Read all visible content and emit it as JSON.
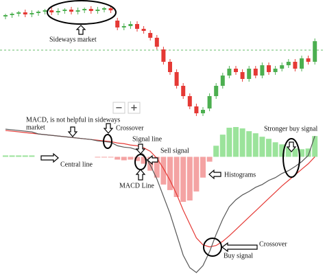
{
  "controls": [
    "−",
    "+"
  ],
  "chart_data": [
    {
      "type": "candlestick",
      "open": [
        156,
        158,
        160,
        162,
        159,
        161,
        163,
        165,
        162,
        164,
        166,
        163,
        165,
        167,
        164,
        166,
        168,
        150,
        140,
        142,
        145,
        138,
        132,
        125,
        108,
        90,
        75,
        55,
        40,
        25,
        15,
        22,
        40,
        55,
        70,
        80,
        75,
        65,
        80,
        70,
        85,
        75,
        80,
        85,
        90,
        80,
        95,
        90
      ],
      "close": [
        158,
        160,
        162,
        159,
        161,
        163,
        165,
        162,
        164,
        166,
        163,
        165,
        167,
        164,
        166,
        168,
        165,
        140,
        142,
        145,
        138,
        135,
        125,
        112,
        90,
        75,
        55,
        40,
        25,
        15,
        20,
        40,
        55,
        70,
        80,
        75,
        65,
        80,
        70,
        85,
        75,
        80,
        85,
        90,
        80,
        95,
        90,
        120
      ],
      "high": [
        160,
        162,
        164,
        166,
        165,
        165,
        167,
        169,
        168,
        168,
        170,
        169,
        169,
        171,
        170,
        170,
        172,
        154,
        146,
        149,
        149,
        142,
        136,
        129,
        112,
        94,
        79,
        59,
        44,
        29,
        24,
        44,
        59,
        74,
        84,
        84,
        79,
        84,
        84,
        89,
        89,
        84,
        89,
        94,
        94,
        99,
        99,
        124
      ],
      "low": [
        152,
        154,
        156,
        155,
        155,
        157,
        159,
        158,
        158,
        160,
        159,
        159,
        161,
        160,
        160,
        162,
        161,
        136,
        136,
        138,
        134,
        131,
        121,
        108,
        86,
        71,
        51,
        36,
        21,
        11,
        11,
        18,
        36,
        51,
        66,
        71,
        61,
        61,
        66,
        66,
        71,
        71,
        76,
        81,
        76,
        76,
        86,
        86
      ],
      "ylim": [
        0,
        180
      ],
      "up_color": "#4caf50",
      "down_color": "#e53935",
      "price_line_color": "#66bb6a",
      "annotations": [
        "Sideways market"
      ]
    },
    {
      "type": "macd",
      "series": [
        {
          "color": "#e53935",
          "values": [
            38,
            37,
            36,
            35,
            34,
            33,
            32,
            31,
            30,
            29,
            28,
            27,
            26,
            25,
            24,
            23,
            22,
            20,
            19,
            17,
            16,
            13,
            8,
            -2,
            -17,
            -34,
            -54,
            -77,
            -97,
            -117,
            -127,
            -130,
            -128,
            -122,
            -114,
            -105,
            -96,
            -87,
            -78,
            -69,
            -60,
            -51,
            -42,
            -34,
            -26,
            -18,
            -10,
            0
          ]
        },
        {
          "color": "#555555",
          "values": [
            40,
            39,
            38,
            37,
            36,
            33,
            32,
            31,
            30,
            29,
            28,
            27,
            26,
            25,
            23,
            22,
            21,
            16,
            14,
            13,
            10,
            3,
            -12,
            -32,
            -57,
            -82,
            -112,
            -142,
            -160,
            -167,
            -157,
            -137,
            -112,
            -90,
            -72,
            -62,
            -55,
            -50,
            -44,
            -40,
            -34,
            -30,
            -24,
            -20,
            -14,
            -7,
            2,
            30
          ]
        }
      ],
      "histogram": {
        "values": [
          2,
          2,
          2,
          2,
          2,
          0,
          0,
          0,
          0,
          0,
          0,
          0,
          0,
          0,
          -1,
          -1,
          -1,
          -4,
          -5,
          -4,
          -6,
          -10,
          -20,
          -30,
          -40,
          -48,
          -58,
          -65,
          -63,
          -50,
          -30,
          -7,
          16,
          32,
          42,
          43,
          41,
          37,
          34,
          29,
          26,
          21,
          18,
          14,
          12,
          11,
          12,
          30
        ],
        "up_color": "#9be39b",
        "down_color": "#f4a3a3"
      },
      "ylim": [
        -170,
        45
      ],
      "annotations": [
        "MACD, is not helpful in sideways",
        "market",
        "Crossover",
        "Signal line",
        "Sell signal",
        "Central line",
        "MACD Line",
        "Histograms",
        "Stronger buy signal",
        "Crossover",
        "Buy signal"
      ]
    }
  ]
}
